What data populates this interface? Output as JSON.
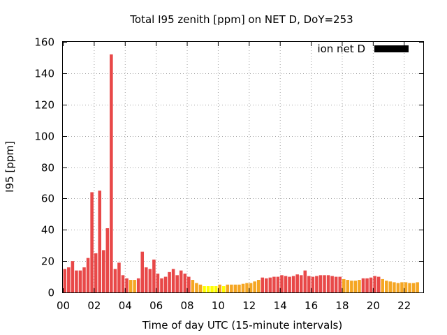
{
  "chart_data": {
    "type": "bar",
    "title": "Total I95 zenith [ppm] on NET D, DoY=253",
    "xlabel": "Time of day UTC (15-minute intervals)",
    "ylabel": "I95 [ppm]",
    "legend": {
      "label": "ion net D",
      "position": "top-right",
      "swatch_color": "#000000"
    },
    "grid": true,
    "xlim": [
      0,
      23.25
    ],
    "ylim": [
      0,
      160
    ],
    "xticks": [
      0,
      2,
      4,
      6,
      8,
      10,
      12,
      14,
      16,
      18,
      20,
      22
    ],
    "xtick_labels": [
      "00",
      "02",
      "04",
      "06",
      "08",
      "10",
      "12",
      "14",
      "16",
      "18",
      "20",
      "22"
    ],
    "yticks": [
      0,
      20,
      40,
      60,
      80,
      100,
      120,
      140,
      160
    ],
    "ytick_labels": [
      "0",
      "20",
      "40",
      "60",
      "80",
      "100",
      "120",
      "140",
      "160"
    ],
    "interval_hours": 0.25,
    "color_scale": [
      {
        "min": 0,
        "max": 5,
        "color": "#ffff00"
      },
      {
        "min": 5,
        "max": 9,
        "color": "#f5a623"
      },
      {
        "min": 9,
        "max": 1000,
        "color": "#e84848"
      }
    ],
    "values": [
      15,
      16,
      20,
      14,
      14,
      16,
      22,
      64,
      25,
      65,
      27,
      41,
      152,
      15,
      19,
      11,
      9,
      8,
      8,
      9,
      26,
      16,
      15,
      21,
      12,
      9,
      10,
      13,
      15,
      11,
      14,
      12,
      10,
      8,
      6,
      5,
      4,
      4,
      4,
      4,
      5,
      4,
      5,
      5,
      5,
      5,
      5.5,
      6,
      6,
      7,
      8,
      9.5,
      9,
      9.5,
      10,
      10,
      11,
      10.5,
      10,
      10.5,
      11.5,
      11,
      14,
      10.5,
      10,
      10.5,
      11,
      11,
      11,
      10.5,
      10,
      10,
      8.5,
      8,
      7.5,
      7.5,
      8,
      9,
      9,
      9.5,
      10.5,
      10,
      8.5,
      7.5,
      7,
      6.5,
      6,
      6.5,
      6.5,
      6,
      6,
      6.5
    ]
  }
}
